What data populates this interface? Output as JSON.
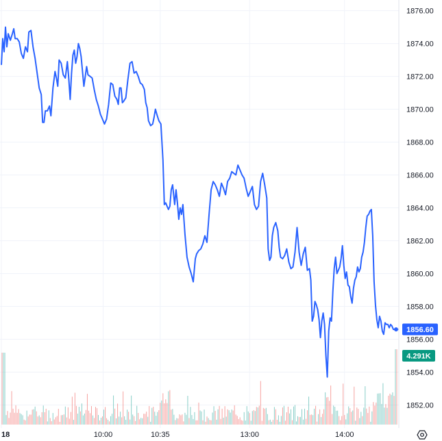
{
  "chart_data": {
    "type": "line",
    "title": "",
    "xlabel": "",
    "ylabel": "",
    "ylim": [
      1850.6,
      1876.65
    ],
    "yticks": [
      1852.0,
      1854.0,
      1856.0,
      1858.0,
      1860.0,
      1862.0,
      1864.0,
      1866.0,
      1868.0,
      1870.0,
      1872.0,
      1874.0,
      1876.0
    ],
    "ytick_labels": [
      "1852.00",
      "1854.00",
      "1856.00",
      "1858.00",
      "1860.00",
      "1862.00",
      "1864.00",
      "1866.00",
      "1868.00",
      "1870.00",
      "1872.00",
      "1874.00",
      "1876.00"
    ],
    "xlim": [
      -2,
      576
    ],
    "xticks": [
      {
        "index": 0,
        "label": "18"
      },
      {
        "index": 148,
        "label": "10:00"
      },
      {
        "index": 231,
        "label": "10:35"
      },
      {
        "index": 361,
        "label": "13:00"
      },
      {
        "index": 499,
        "label": "14:00"
      }
    ],
    "line_color": "#2962ff",
    "up_color": "#26a69a",
    "down_color": "#ef5350",
    "grid": true,
    "last_price": {
      "value": 1856.6,
      "label": "1856.60",
      "color": "#2962ff"
    },
    "volume_label": {
      "label": "4.291K",
      "color": "#089981"
    },
    "series": [
      {
        "points": [
          [
            0,
            1872.7
          ],
          [
            2,
            1874.3
          ],
          [
            4,
            1873.5
          ],
          [
            6,
            1875
          ],
          [
            8,
            1873.8
          ],
          [
            10,
            1874.6
          ],
          [
            13,
            1874.2
          ],
          [
            16,
            1874.6
          ],
          [
            18,
            1874.9
          ],
          [
            20,
            1874.3
          ],
          [
            23,
            1874.3
          ],
          [
            26,
            1874.1
          ],
          [
            29,
            1873.4
          ],
          [
            32,
            1873.1
          ],
          [
            35,
            1873.8
          ],
          [
            38,
            1873.5
          ],
          [
            40,
            1874.7
          ],
          [
            43,
            1874.8
          ],
          [
            46,
            1873.8
          ],
          [
            49,
            1873.1
          ],
          [
            52,
            1872.2
          ],
          [
            55,
            1871.3
          ],
          [
            58,
            1870.9
          ],
          [
            60,
            1869.2
          ],
          [
            62,
            1869.2
          ],
          [
            64,
            1869.9
          ],
          [
            67,
            1869.9
          ],
          [
            70,
            1870.2
          ],
          [
            72,
            1869.6
          ],
          [
            75,
            1871.3
          ],
          [
            78,
            1872.3
          ],
          [
            80,
            1871.9
          ],
          [
            82,
            1871.4
          ],
          [
            84,
            1873
          ],
          [
            87,
            1872.8
          ],
          [
            90,
            1872.1
          ],
          [
            93,
            1871.9
          ],
          [
            96,
            1872.9
          ],
          [
            98,
            1871.9
          ],
          [
            100,
            1870.6
          ],
          [
            102,
            1872.2
          ],
          [
            104,
            1873.3
          ],
          [
            106,
            1873.6
          ],
          [
            108,
            1872.8
          ],
          [
            110,
            1873.2
          ],
          [
            112,
            1874
          ],
          [
            114,
            1873.7
          ],
          [
            116,
            1873.2
          ],
          [
            118,
            1872.3
          ],
          [
            120,
            1871.4
          ],
          [
            122,
            1872
          ],
          [
            124,
            1872.6
          ],
          [
            126,
            1872.1
          ],
          [
            129,
            1872
          ],
          [
            132,
            1871.9
          ],
          [
            135,
            1871.2
          ],
          [
            138,
            1870.6
          ],
          [
            141,
            1870.2
          ],
          [
            144,
            1869.7
          ],
          [
            147,
            1869.4
          ],
          [
            150,
            1869.1
          ],
          [
            153,
            1869.4
          ],
          [
            156,
            1870.3
          ],
          [
            159,
            1871.6
          ],
          [
            162,
            1871.5
          ],
          [
            165,
            1870.8
          ],
          [
            168,
            1870.6
          ],
          [
            170,
            1870.3
          ],
          [
            172,
            1871.3
          ],
          [
            174,
            1871.3
          ],
          [
            176,
            1870.4
          ],
          [
            178,
            1870.5
          ],
          [
            181,
            1870.7
          ],
          [
            184,
            1871.8
          ],
          [
            187,
            1872.8
          ],
          [
            190,
            1872.9
          ],
          [
            193,
            1872.2
          ],
          [
            196,
            1872.3
          ],
          [
            199,
            1872
          ],
          [
            202,
            1871.6
          ],
          [
            205,
            1871.5
          ],
          [
            208,
            1871.2
          ],
          [
            210,
            1870.4
          ],
          [
            212,
            1870.1
          ],
          [
            214,
            1869.3
          ],
          [
            217,
            1869
          ],
          [
            220,
            1869.1
          ],
          [
            222,
            1869.5
          ],
          [
            224,
            1870
          ],
          [
            226,
            1869.7
          ],
          [
            229,
            1869.3
          ],
          [
            232,
            1869.1
          ],
          [
            235,
            1866.9
          ],
          [
            237,
            1864.2
          ],
          [
            239,
            1864.3
          ],
          [
            241,
            1864.1
          ],
          [
            243,
            1863.9
          ],
          [
            245,
            1864.1
          ],
          [
            247,
            1865.1
          ],
          [
            249,
            1865.4
          ],
          [
            252,
            1864.2
          ],
          [
            254,
            1865.1
          ],
          [
            256,
            1864.3
          ],
          [
            258,
            1863.3
          ],
          [
            260,
            1864
          ],
          [
            262,
            1863.6
          ],
          [
            264,
            1864.2
          ],
          [
            267,
            1862.4
          ],
          [
            270,
            1861
          ],
          [
            273,
            1860.4
          ],
          [
            276,
            1860
          ],
          [
            279,
            1859.5
          ],
          [
            282,
            1860.9
          ],
          [
            284,
            1861.2
          ],
          [
            287,
            1861.4
          ],
          [
            290,
            1861.5
          ],
          [
            293,
            1861.8
          ],
          [
            296,
            1862.3
          ],
          [
            299,
            1861.9
          ],
          [
            302,
            1863.6
          ],
          [
            305,
            1865.1
          ],
          [
            308,
            1865.6
          ],
          [
            311,
            1865.4
          ],
          [
            314,
            1865.1
          ],
          [
            317,
            1864.7
          ],
          [
            320,
            1865.5
          ],
          [
            323,
            1865.2
          ],
          [
            326,
            1864.8
          ],
          [
            329,
            1865.6
          ],
          [
            332,
            1865.8
          ],
          [
            335,
            1866.2
          ],
          [
            338,
            1866.1
          ],
          [
            341,
            1866
          ],
          [
            344,
            1866.6
          ],
          [
            347,
            1866.3
          ],
          [
            350,
            1866
          ],
          [
            353,
            1865.8
          ],
          [
            356,
            1865.2
          ],
          [
            359,
            1864.7
          ],
          [
            362,
            1865
          ],
          [
            365,
            1865.3
          ],
          [
            368,
            1864.2
          ],
          [
            371,
            1863.9
          ],
          [
            374,
            1864.1
          ],
          [
            377,
            1865.6
          ],
          [
            380,
            1866.1
          ],
          [
            383,
            1865.4
          ],
          [
            386,
            1864.6
          ],
          [
            388,
            1861.5
          ],
          [
            390,
            1860.8
          ],
          [
            392,
            1861
          ],
          [
            394,
            1862.3
          ],
          [
            396,
            1862.8
          ],
          [
            399,
            1863.1
          ],
          [
            402,
            1862.6
          ],
          [
            404,
            1861.6
          ],
          [
            406,
            1861
          ],
          [
            409,
            1860.9
          ],
          [
            412,
            1861.1
          ],
          [
            415,
            1861.5
          ],
          [
            418,
            1860.7
          ],
          [
            421,
            1860.3
          ],
          [
            424,
            1860.4
          ],
          [
            427,
            1861.3
          ],
          [
            430,
            1862.8
          ],
          [
            433,
            1861.3
          ],
          [
            436,
            1860.5
          ],
          [
            439,
            1861.2
          ],
          [
            442,
            1861.6
          ],
          [
            445,
            1860.2
          ],
          [
            448,
            1860.3
          ],
          [
            450,
            1859.6
          ],
          [
            452,
            1857.1
          ],
          [
            454,
            1857.4
          ],
          [
            456,
            1858.3
          ],
          [
            458,
            1858.1
          ],
          [
            460,
            1857.8
          ],
          [
            462,
            1857.2
          ],
          [
            464,
            1856.1
          ],
          [
            466,
            1857.1
          ],
          [
            468,
            1857.6
          ],
          [
            470,
            1856.9
          ],
          [
            472,
            1855
          ],
          [
            474,
            1853.7
          ],
          [
            476,
            1856.5
          ],
          [
            478,
            1857.3
          ],
          [
            480,
            1857.1
          ],
          [
            482,
            1858.9
          ],
          [
            484,
            1860.3
          ],
          [
            486,
            1861
          ],
          [
            488,
            1860
          ],
          [
            490,
            1860.2
          ],
          [
            492,
            1860.4
          ],
          [
            494,
            1860.9
          ],
          [
            496,
            1861.7
          ],
          [
            498,
            1860.5
          ],
          [
            500,
            1859.7
          ],
          [
            502,
            1860.1
          ],
          [
            504,
            1859.3
          ],
          [
            506,
            1859.2
          ],
          [
            508,
            1858.6
          ],
          [
            510,
            1858.2
          ],
          [
            512,
            1859.1
          ],
          [
            514,
            1859.6
          ],
          [
            516,
            1859.8
          ],
          [
            518,
            1860.4
          ],
          [
            520,
            1860.1
          ],
          [
            522,
            1860.3
          ],
          [
            524,
            1861
          ],
          [
            526,
            1861.3
          ],
          [
            528,
            1861.9
          ],
          [
            530,
            1862.8
          ],
          [
            532,
            1863.5
          ],
          [
            534,
            1863.6
          ],
          [
            536,
            1863.8
          ],
          [
            538,
            1863.9
          ],
          [
            540,
            1862.3
          ],
          [
            542,
            1859.5
          ],
          [
            544,
            1858.1
          ],
          [
            546,
            1857.2
          ],
          [
            548,
            1856.7
          ],
          [
            550,
            1857.4
          ],
          [
            552,
            1857.1
          ],
          [
            554,
            1856.5
          ],
          [
            556,
            1856.3
          ],
          [
            558,
            1857
          ],
          [
            560,
            1856.9
          ],
          [
            562,
            1856.9
          ],
          [
            564,
            1856.7
          ],
          [
            566,
            1856.9
          ],
          [
            568,
            1856.8
          ],
          [
            570,
            1856.6
          ],
          [
            572,
            1856.6
          ],
          [
            574,
            1856.6
          ]
        ]
      }
    ]
  }
}
